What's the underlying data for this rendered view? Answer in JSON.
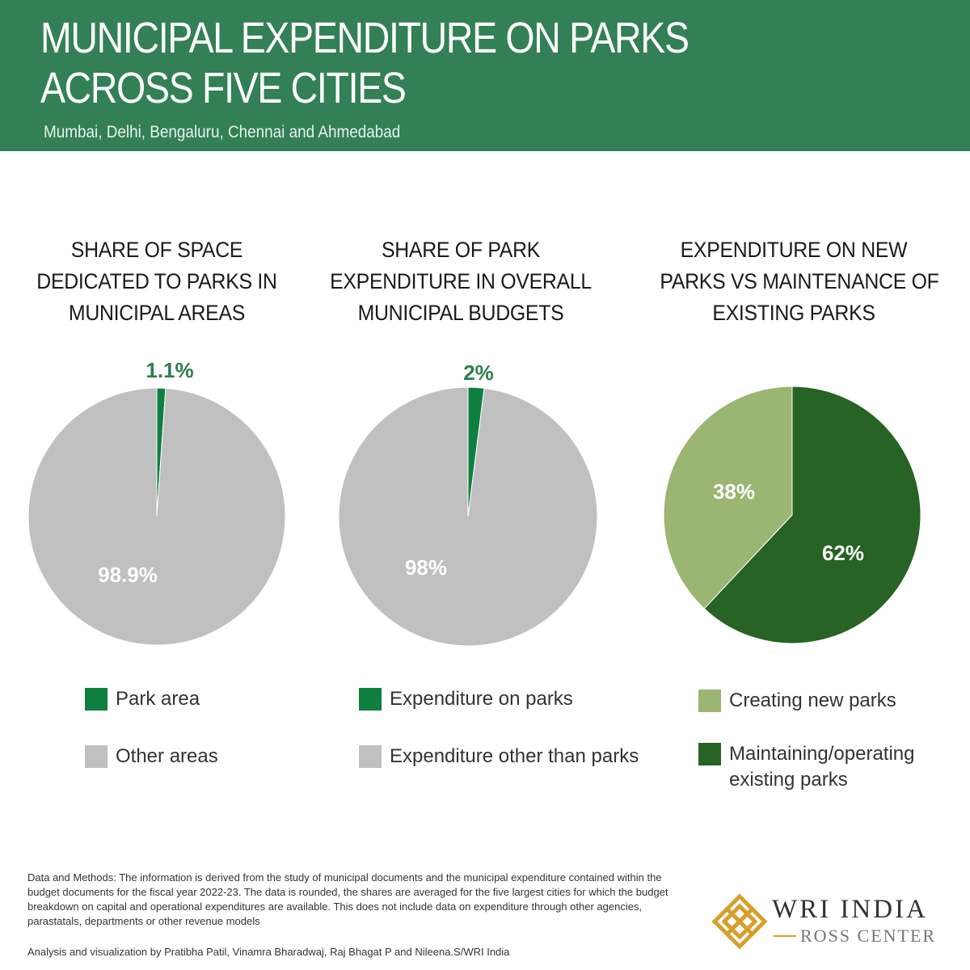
{
  "header": {
    "title_lines": [
      "MUNICIPAL EXPENDITURE ON PARKS",
      "ACROSS FIVE CITIES"
    ],
    "subtitle": "Mumbai, Delhi, Bengaluru, Chennai and Ahmedabad"
  },
  "chart_data": [
    {
      "type": "pie",
      "title_lines": [
        "SHARE OF SPACE",
        "DEDICATED TO PARKS IN",
        "MUNICIPAL AREAS"
      ],
      "slices": [
        {
          "label": "Park area",
          "value": 1.1,
          "display": "1.1%",
          "color": "#0e7f3f"
        },
        {
          "label": "Other areas",
          "value": 98.9,
          "display": "98.9%",
          "color": "#c0c0c0"
        }
      ]
    },
    {
      "type": "pie",
      "title_lines": [
        "SHARE OF PARK",
        "EXPENDITURE IN OVERALL",
        "MUNICIPAL BUDGETS"
      ],
      "slices": [
        {
          "label": "Expenditure on parks",
          "value": 2,
          "display": "2%",
          "color": "#0e7f3f"
        },
        {
          "label": "Expenditure other than parks",
          "value": 98,
          "display": "98%",
          "color": "#c0c0c0"
        }
      ]
    },
    {
      "type": "pie",
      "title_lines": [
        "EXPENDITURE ON NEW",
        "PARKS VS MAINTENANCE OF",
        "EXISTING PARKS"
      ],
      "slices": [
        {
          "label": "Maintaining/operating existing parks",
          "value": 62,
          "display": "62%",
          "color": "#276324"
        },
        {
          "label": "Creating new parks",
          "value": 38,
          "display": "38%",
          "color": "#9bb572"
        }
      ],
      "legend_order": [
        1,
        0
      ]
    }
  ],
  "legends": [
    [
      {
        "label_lines": [
          "Park area"
        ],
        "color": "#0e7f3f"
      },
      {
        "label_lines": [
          "Other areas"
        ],
        "color": "#c0c0c0"
      }
    ],
    [
      {
        "label_lines": [
          "Expenditure on parks"
        ],
        "color": "#0e7f3f"
      },
      {
        "label_lines": [
          "Expenditure other than parks"
        ],
        "color": "#c0c0c0"
      }
    ],
    [
      {
        "label_lines": [
          "Creating new parks"
        ],
        "color": "#9bb572"
      },
      {
        "label_lines": [
          "Maintaining/operating",
          "existing parks"
        ],
        "color": "#276324"
      }
    ]
  ],
  "footnote": "Data and Methods: The information is derived from the study of municipal documents and the municipal expenditure contained within the budget documents for the fiscal year 2022-23. The data is rounded, the shares are averaged for the five largest cities for which the budget breakdown on capital and operational expenditures are available. This does not include data on expenditure through other agencies, parastatals, departments or other revenue models",
  "credit": "Analysis and visualization by Pratibha Patil, Vinamra Bharadwaj, Raj Bhagat P and Nileena.S/WRI India",
  "logo": {
    "main": "WRI INDIA",
    "sub": "ROSS CENTER",
    "accent": "#d79f2b"
  }
}
